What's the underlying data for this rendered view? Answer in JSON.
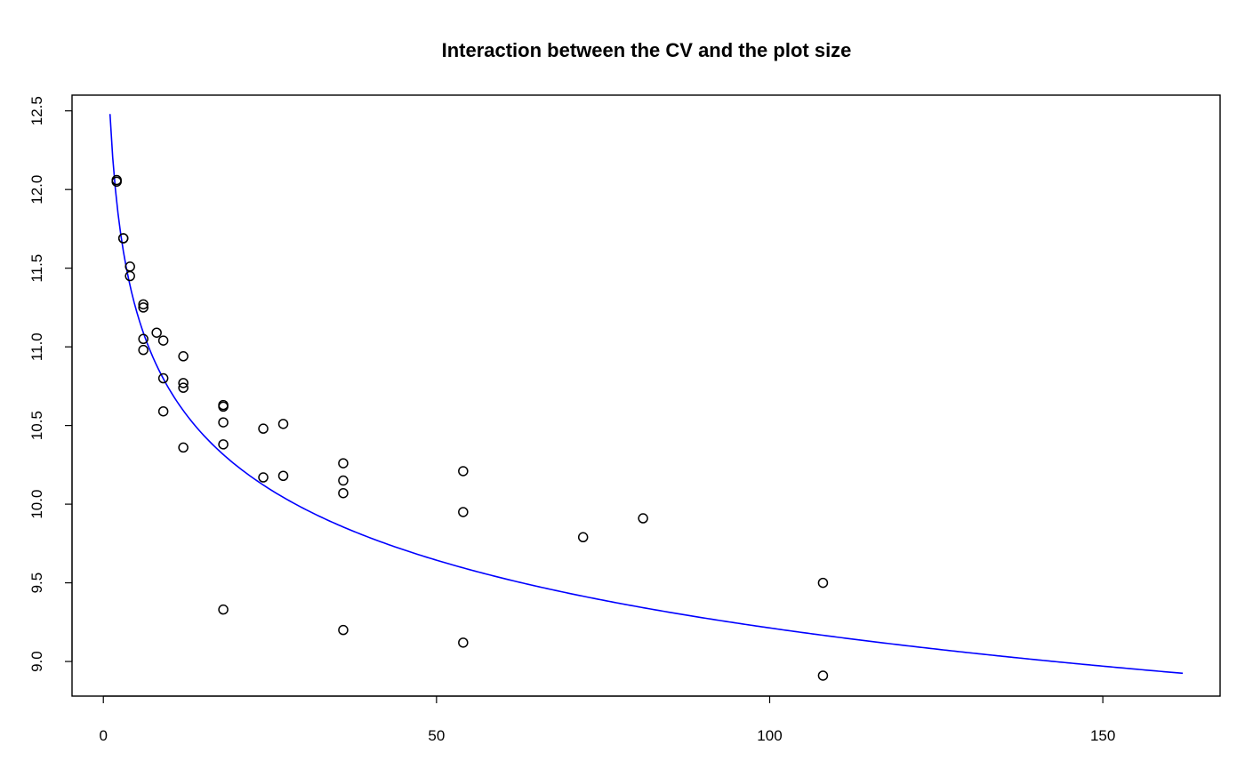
{
  "chart_data": {
    "type": "scatter",
    "title": "Interaction between the CV and the plot size",
    "xlabel": "",
    "ylabel": "",
    "xlim": [
      -4.7,
      167.6
    ],
    "ylim": [
      8.78,
      12.6
    ],
    "x_ticks": [
      0,
      50,
      100,
      150
    ],
    "x_tick_labels": [
      "0",
      "50",
      "100",
      "150"
    ],
    "y_ticks": [
      9.0,
      9.5,
      10.0,
      10.5,
      11.0,
      11.5,
      12.0,
      12.5
    ],
    "y_tick_labels": [
      "9.0",
      "9.5",
      "10.0",
      "10.5",
      "11.0",
      "11.5",
      "12.0",
      "12.5"
    ],
    "grid": false,
    "legend": "none",
    "points": {
      "x": [
        2,
        2,
        3,
        3,
        4,
        4,
        6,
        6,
        6,
        6,
        8,
        9,
        9,
        9,
        12,
        12,
        12,
        12,
        18,
        18,
        18,
        18,
        18,
        24,
        24,
        27,
        27,
        36,
        36,
        36,
        36,
        54,
        54,
        54,
        72,
        81,
        108,
        108
      ],
      "y": [
        12.06,
        12.05,
        11.69,
        11.69,
        11.51,
        11.45,
        11.27,
        11.25,
        11.05,
        10.98,
        11.09,
        11.04,
        10.8,
        10.59,
        10.94,
        10.77,
        10.74,
        10.36,
        10.63,
        10.62,
        10.52,
        10.38,
        9.33,
        10.48,
        10.17,
        10.51,
        10.18,
        10.26,
        10.15,
        10.07,
        9.2,
        10.21,
        9.95,
        9.12,
        9.79,
        9.91,
        9.5,
        8.91
      ]
    },
    "fit": {
      "model": "power",
      "a": 12.48,
      "b": -0.0659,
      "x_range": [
        1,
        162
      ],
      "color": "#0000ff"
    },
    "point_color": "#000000"
  }
}
